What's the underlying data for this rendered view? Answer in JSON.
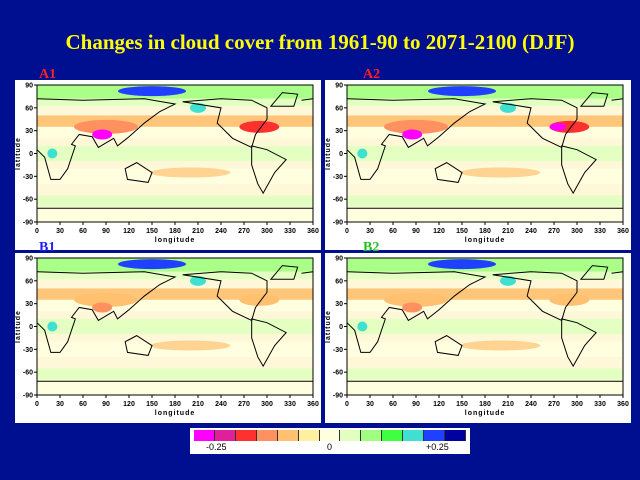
{
  "title": "Changes in cloud cover from 1961-90 to 2071-2100 (DJF)",
  "panels": [
    {
      "label": "A1",
      "label_color": "#ff2020"
    },
    {
      "label": "A2",
      "label_color": "#ff2020"
    },
    {
      "label": "B1",
      "label_color": "#2020ff"
    },
    {
      "label": "B2",
      "label_color": "#20c020"
    }
  ],
  "axes": {
    "xlabel": "longitude",
    "ylabel": "latitude",
    "xticks": [
      "0",
      "30",
      "60",
      "90",
      "120",
      "150",
      "180",
      "210",
      "240",
      "270",
      "300",
      "330",
      "360"
    ],
    "yticks": [
      "90",
      "60",
      "30",
      "0",
      "-30",
      "-60",
      "-90"
    ]
  },
  "colorbar": {
    "colors": [
      "#ff00ff",
      "#e0209a",
      "#ff3030",
      "#ff9060",
      "#ffc070",
      "#fff0a0",
      "#ffffe0",
      "#e0ffc0",
      "#a0ff80",
      "#40ff40",
      "#40e0d0",
      "#2040ff",
      "#0000a0"
    ],
    "labels": [
      "-0.25",
      "0",
      "+0.25"
    ]
  }
}
